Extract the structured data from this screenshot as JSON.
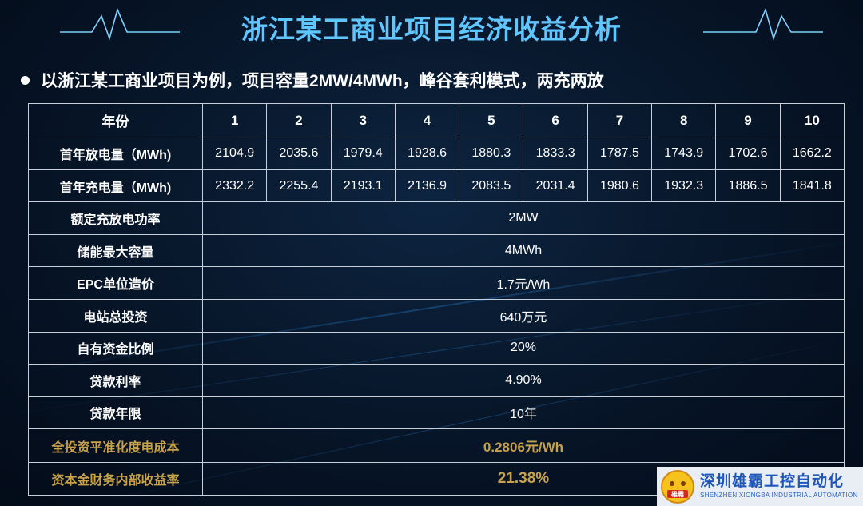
{
  "title": "浙江某工商业项目经济收益分析",
  "bullet": "以浙江某工商业项目为例，项目容量2MW/4MWh，峰谷套利模式，两充两放",
  "table": {
    "year_label": "年份",
    "years": [
      "1",
      "2",
      "3",
      "4",
      "5",
      "6",
      "7",
      "8",
      "9",
      "10"
    ],
    "discharge_label": "首年放电量（MWh)",
    "discharge": [
      "2104.9",
      "2035.6",
      "1979.4",
      "1928.6",
      "1880.3",
      "1833.3",
      "1787.5",
      "1743.9",
      "1702.6",
      "1662.2"
    ],
    "charge_label": "首年充电量（MWh)",
    "charge": [
      "2332.2",
      "2255.4",
      "2193.1",
      "2136.9",
      "2083.5",
      "2031.4",
      "1980.6",
      "1932.3",
      "1886.5",
      "1841.8"
    ],
    "rows": [
      {
        "label": "额定充放电功率",
        "value": "2MW"
      },
      {
        "label": "储能最大容量",
        "value": "4MWh"
      },
      {
        "label": "EPC单位造价",
        "value": "1.7元/Wh"
      },
      {
        "label": "电站总投资",
        "value": "640万元"
      },
      {
        "label": "自有资金比例",
        "value": "20%"
      },
      {
        "label": "贷款利率",
        "value": "4.90%"
      },
      {
        "label": "贷款年限",
        "value": "10年"
      }
    ],
    "lcoe_label": "全投资平准化度电成本",
    "lcoe_value": "0.2806元/Wh",
    "irr_label": "资本金财务内部收益率",
    "irr_value": "21.38%"
  },
  "logo": {
    "cn": "深圳雄霸工控自动化",
    "en": "SHENZHEN XIONGBA INDUSTRIAL AUTOMATION",
    "mark_text": "雄霸"
  },
  "colors": {
    "title": "#5fc6ff",
    "highlight": "#c7a24a",
    "border": "#c9cfd8",
    "logo_blue": "#1f56b8"
  }
}
